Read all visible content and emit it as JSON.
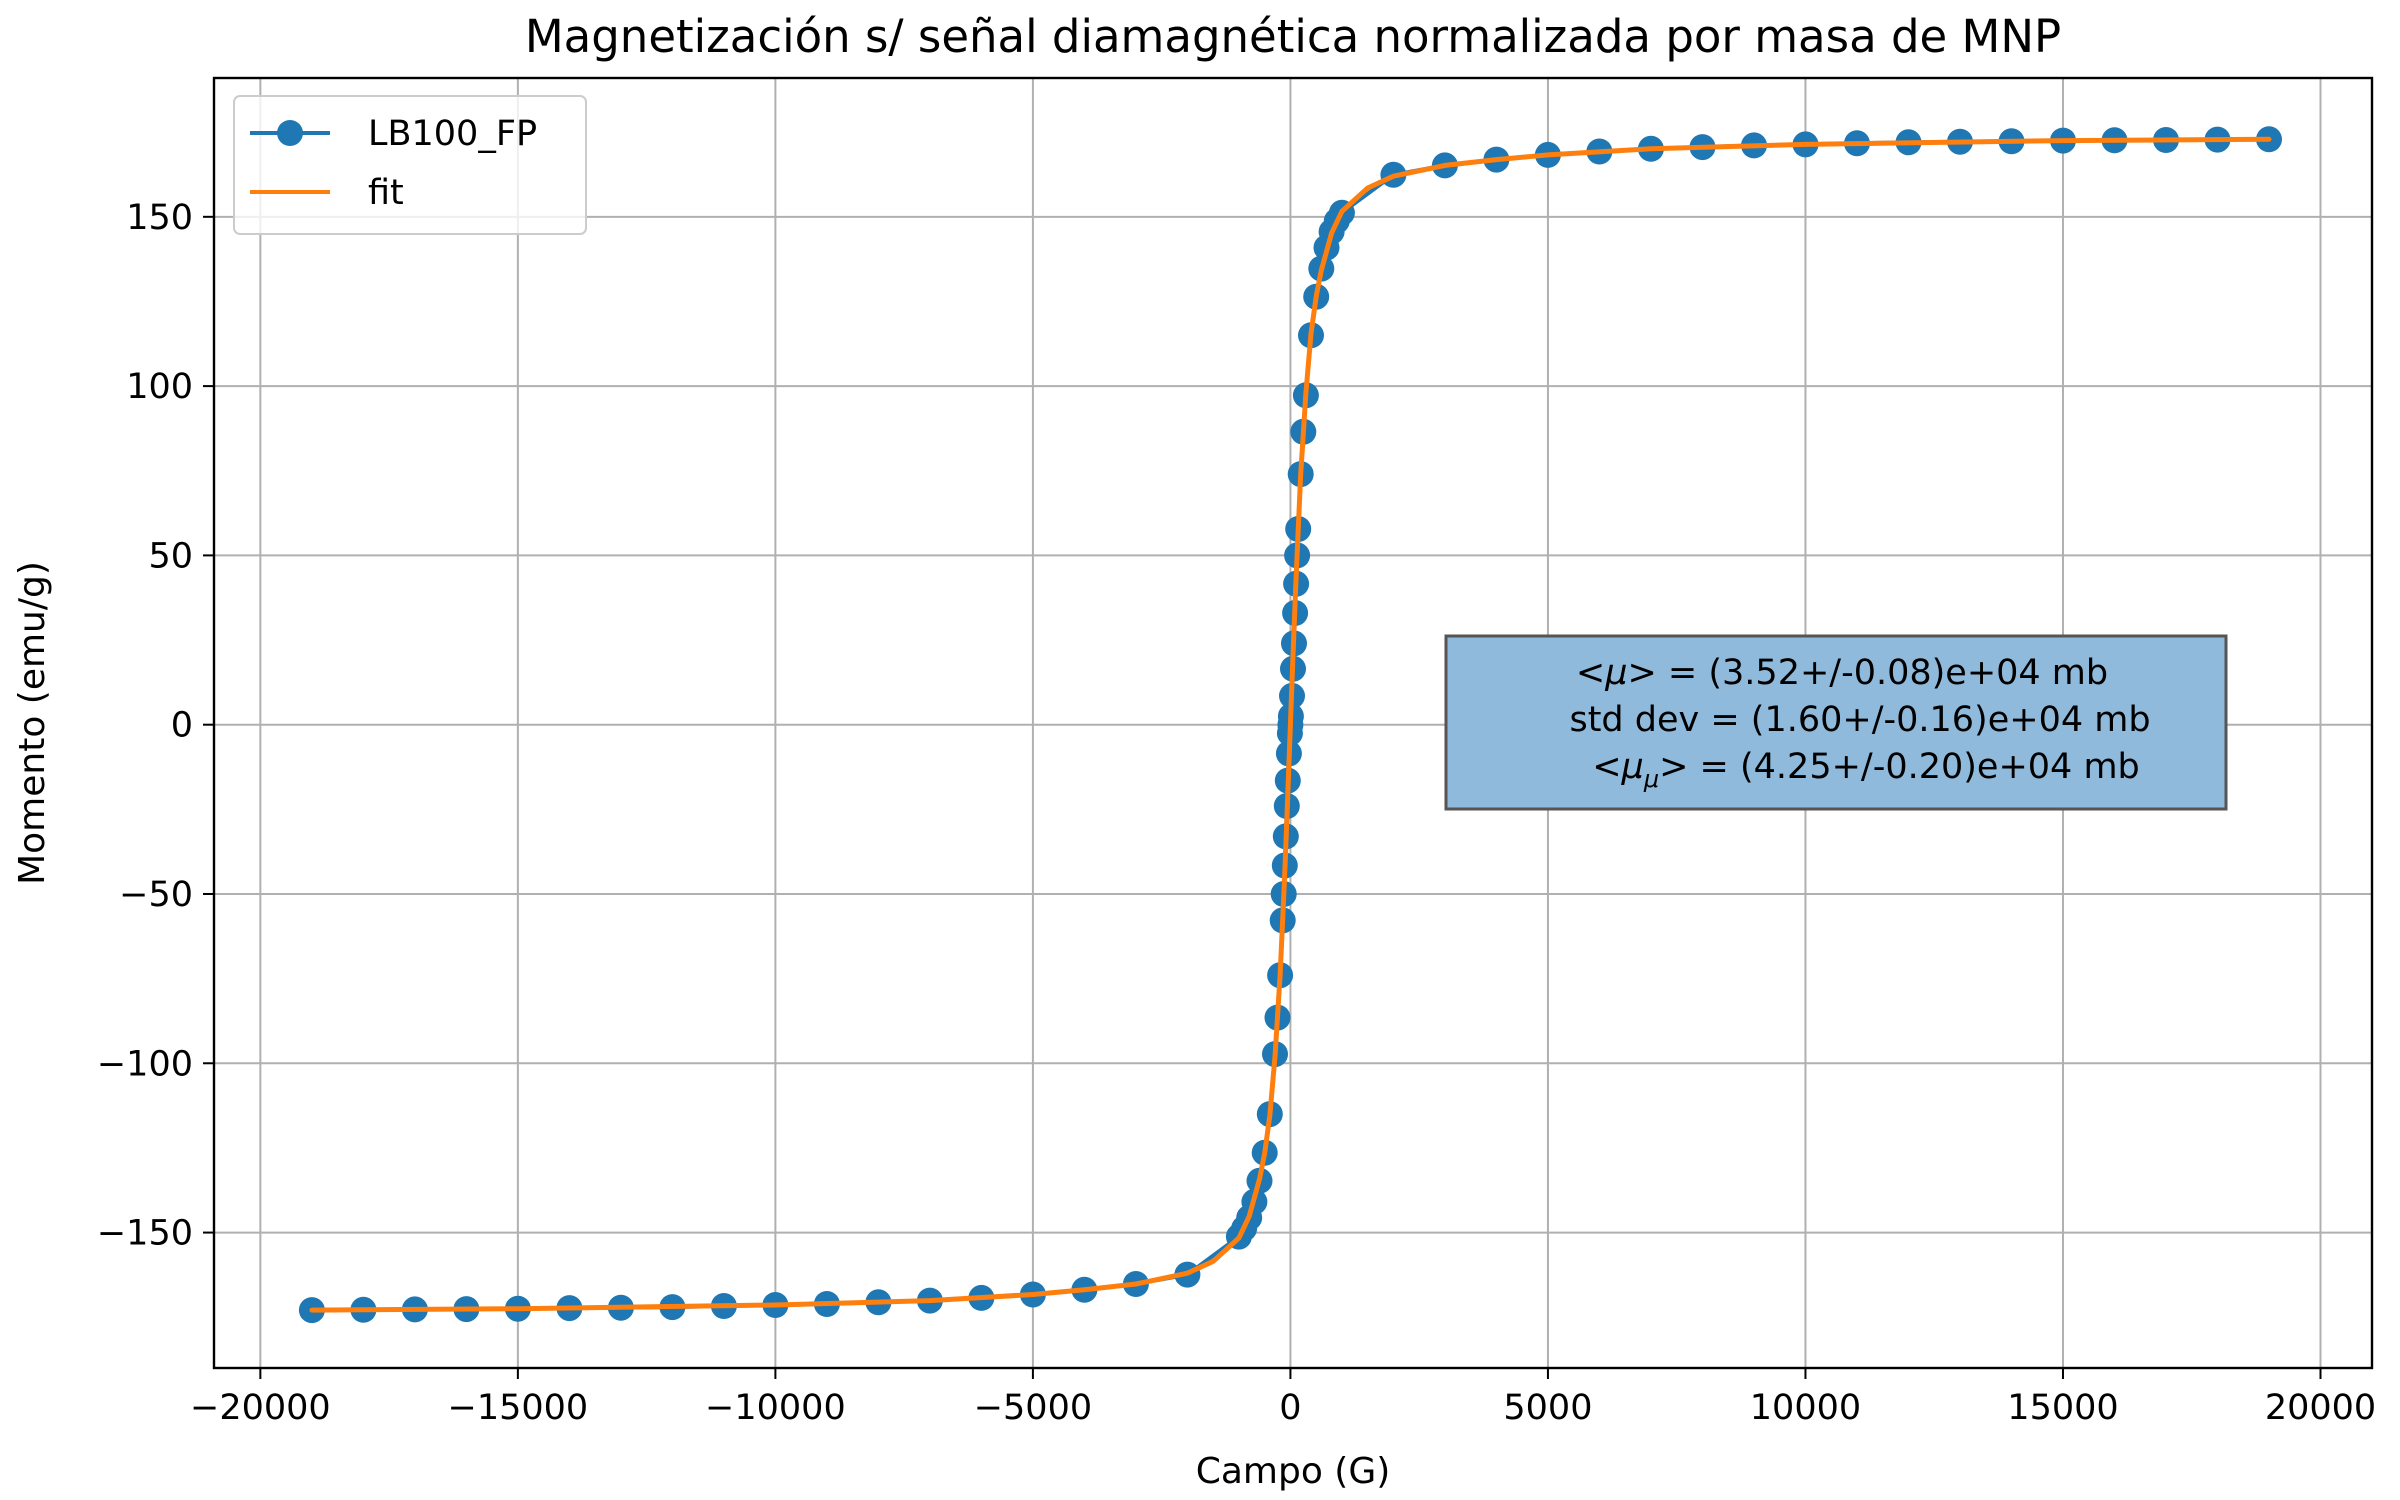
{
  "chart_data": {
    "type": "line",
    "title": "Magnetización s/ señal diamagnética normalizada por masa de MNP",
    "xlabel": "Campo (G)",
    "ylabel": "Momento (emu/g)",
    "xlim": [
      -20900,
      21000
    ],
    "ylim": [
      -190,
      191
    ],
    "xticks": [
      -20000,
      -15000,
      -10000,
      -5000,
      0,
      5000,
      10000,
      15000,
      20000
    ],
    "xtick_labels": [
      "−20000",
      "−15000",
      "−10000",
      "−5000",
      "0",
      "5000",
      "10000",
      "15000",
      "20000"
    ],
    "yticks": [
      -150,
      -100,
      -50,
      0,
      50,
      100,
      150
    ],
    "ytick_labels": [
      "−150",
      "−100",
      "−50",
      "0",
      "50",
      "100",
      "150"
    ],
    "grid": true,
    "legend_position": "top-left",
    "series": [
      {
        "name": "LB100_FP",
        "style": "line-with-markers",
        "color": "#1f77b4",
        "x": [
          -19000,
          -18000,
          -17000,
          -16000,
          -15000,
          -14000,
          -13000,
          -12000,
          -11000,
          -10000,
          -9000,
          -8000,
          -7000,
          -6000,
          -5000,
          -4000,
          -3000,
          -2000,
          -1000,
          -900,
          -800,
          -700,
          -600,
          -500,
          -400,
          -300,
          -250,
          -200,
          -150,
          -130,
          -110,
          -90,
          -70,
          -50,
          -30,
          -10,
          0,
          10,
          30,
          50,
          70,
          90,
          110,
          130,
          150,
          200,
          250,
          300,
          400,
          500,
          600,
          700,
          800,
          900,
          1000,
          2000,
          3000,
          4000,
          5000,
          6000,
          7000,
          8000,
          9000,
          10000,
          11000,
          12000,
          13000,
          14000,
          15000,
          16000,
          17000,
          18000,
          19000
        ],
        "y": [
          -172.9,
          -172.8,
          -172.7,
          -172.6,
          -172.5,
          -172.3,
          -172.2,
          -172.0,
          -171.7,
          -171.4,
          -171.1,
          -170.6,
          -170.1,
          -169.3,
          -168.3,
          -166.9,
          -165.2,
          -162.4,
          -151.2,
          -148.8,
          -145.6,
          -140.9,
          -134.7,
          -126.4,
          -115.0,
          -97.3,
          -86.5,
          -74.0,
          -57.8,
          -50.0,
          -41.6,
          -33.0,
          -24.0,
          -16.5,
          -8.5,
          -2.5,
          0.0,
          2.5,
          8.5,
          16.5,
          24.0,
          33.0,
          41.6,
          50.0,
          57.8,
          74.0,
          86.5,
          97.3,
          115.0,
          126.4,
          134.7,
          140.9,
          145.6,
          148.8,
          151.2,
          162.4,
          165.2,
          166.9,
          168.3,
          169.3,
          170.1,
          170.6,
          171.1,
          171.4,
          171.7,
          172.0,
          172.2,
          172.3,
          172.5,
          172.6,
          172.7,
          172.8,
          172.9
        ]
      },
      {
        "name": "fit",
        "style": "line",
        "color": "#ff7f0e",
        "x": [
          -19000,
          -15000,
          -10000,
          -7000,
          -5000,
          -4000,
          -3000,
          -2000,
          -1500,
          -1000,
          -800,
          -600,
          -500,
          -400,
          -300,
          -200,
          -150,
          -100,
          -50,
          0,
          50,
          100,
          150,
          200,
          300,
          400,
          500,
          600,
          800,
          1000,
          1500,
          2000,
          3000,
          4000,
          5000,
          7000,
          10000,
          15000,
          19000
        ],
        "y": [
          -172.9,
          -172.5,
          -171.4,
          -170.1,
          -168.3,
          -166.9,
          -165.2,
          -162.0,
          -158.5,
          -151.6,
          -145.2,
          -134.2,
          -126.5,
          -115.5,
          -98.0,
          -74.0,
          -57.5,
          -40.0,
          -20.5,
          0.0,
          20.5,
          40.0,
          57.5,
          74.0,
          98.0,
          115.5,
          126.5,
          134.2,
          145.2,
          151.6,
          158.5,
          162.0,
          165.2,
          166.9,
          168.3,
          170.1,
          171.4,
          172.5,
          172.9
        ]
      }
    ],
    "annotation": {
      "line1_pre": "<",
      "line1_sym": "μ",
      "line1_post": "> = (3.52+/-0.08)e+04 mb",
      "line2": "std dev = (1.60+/-0.16)e+04 mb",
      "line3_pre": "<",
      "line3_sym": "μ",
      "line3_sub": "μ",
      "line3_post": "> = (4.25+/-0.20)e+04 mb",
      "box_color": "#8fbadb",
      "box_border_color": "#555555"
    }
  }
}
